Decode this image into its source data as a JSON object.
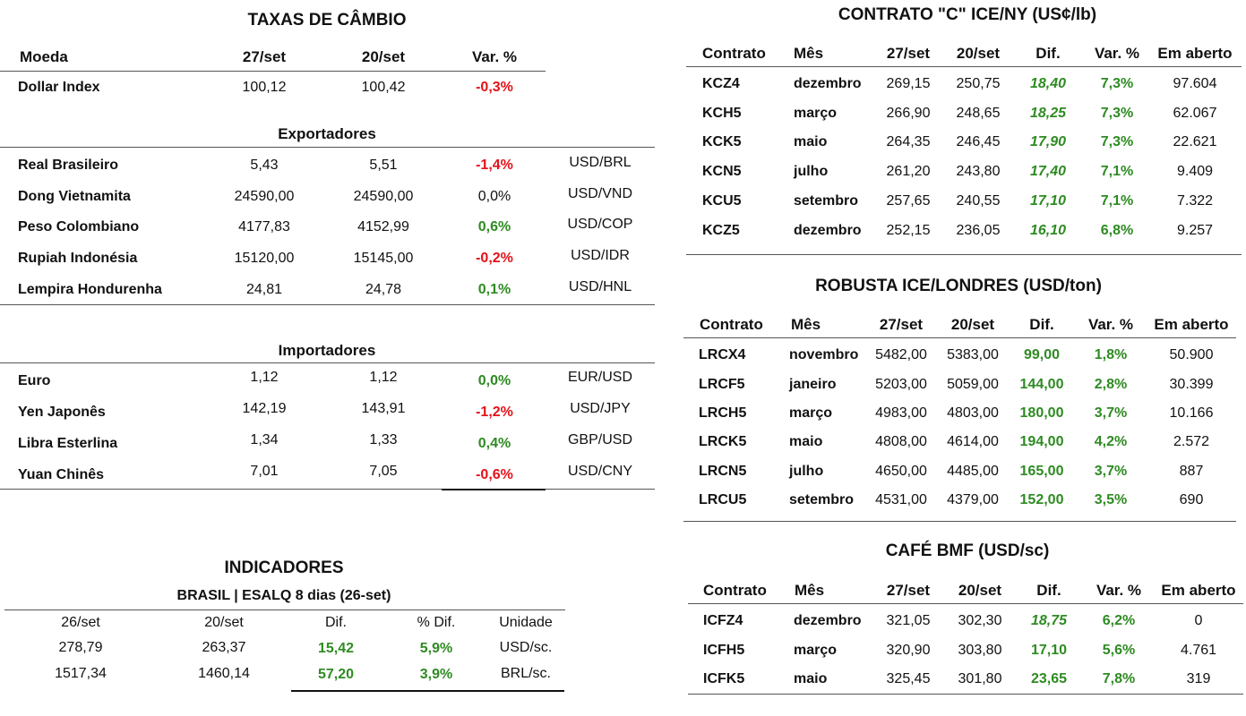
{
  "colors": {
    "positive": "#2e8b22",
    "negative": "#e3121a"
  },
  "fx": {
    "title": "TAXAS DE CÂMBIO",
    "headers": [
      "Moeda",
      "27/set",
      "20/set",
      "Var. %"
    ],
    "dollar_index": {
      "name": "Dollar Index",
      "v1": "100,12",
      "v2": "100,42",
      "var": "-0,3%"
    },
    "exporters_title": "Exportadores",
    "exporters": [
      {
        "name": "Real Brasileiro",
        "v1": "5,43",
        "v2": "5,51",
        "var": "-1,4%",
        "pair": "USD/BRL",
        "sign": "neg"
      },
      {
        "name": "Dong Vietnamita",
        "v1": "24590,00",
        "v2": "24590,00",
        "var": "0,0%",
        "pair": "USD/VND",
        "sign": "none"
      },
      {
        "name": "Peso Colombiano",
        "v1": "4177,83",
        "v2": "4152,99",
        "var": "0,6%",
        "pair": "USD/COP",
        "sign": "pos"
      },
      {
        "name": "Rupiah Indonésia",
        "v1": "15120,00",
        "v2": "15145,00",
        "var": "-0,2%",
        "pair": "USD/IDR",
        "sign": "neg"
      },
      {
        "name": "Lempira Hondurenha",
        "v1": "24,81",
        "v2": "24,78",
        "var": "0,1%",
        "pair": "USD/HNL",
        "sign": "pos"
      }
    ],
    "importers_title": "Importadores",
    "importers": [
      {
        "name": "Euro",
        "v1": "1,12",
        "v2": "1,12",
        "var": "0,0%",
        "pair": "EUR/USD",
        "sign": "pos"
      },
      {
        "name": "Yen Japonês",
        "v1": "142,19",
        "v2": "143,91",
        "var": "-1,2%",
        "pair": "USD/JPY",
        "sign": "neg"
      },
      {
        "name": "Libra Esterlina",
        "v1": "1,34",
        "v2": "1,33",
        "var": "0,4%",
        "pair": "GBP/USD",
        "sign": "pos"
      },
      {
        "name": "Yuan Chinês",
        "v1": "7,01",
        "v2": "7,05",
        "var": "-0,6%",
        "pair": "USD/CNY",
        "sign": "neg"
      }
    ]
  },
  "indicators": {
    "title": "INDICADORES",
    "subtitle": "BRASIL | ESALQ 8 dias (26-set)",
    "headers": [
      "26/set",
      "20/set",
      "Dif.",
      "% Dif.",
      "Unidade"
    ],
    "rows": [
      {
        "v1": "278,79",
        "v2": "263,37",
        "dif": "15,42",
        "pct": "5,9%",
        "unit": "USD/sc."
      },
      {
        "v1": "1517,34",
        "v2": "1460,14",
        "dif": "57,20",
        "pct": "3,9%",
        "unit": "BRL/sc."
      }
    ]
  },
  "arabica": {
    "title": "CONTRATO \"C\" ICE/NY (US¢/lb)",
    "headers": [
      "Contrato",
      "Mês",
      "27/set",
      "20/set",
      "Dif.",
      "Var. %",
      "Em aberto"
    ],
    "rows": [
      {
        "c": "KCZ4",
        "m": "dezembro",
        "v1": "269,15",
        "v2": "250,75",
        "dif": "18,40",
        "var": "7,3%",
        "oi": "97.604"
      },
      {
        "c": "KCH5",
        "m": "março",
        "v1": "266,90",
        "v2": "248,65",
        "dif": "18,25",
        "var": "7,3%",
        "oi": "62.067"
      },
      {
        "c": "KCK5",
        "m": "maio",
        "v1": "264,35",
        "v2": "246,45",
        "dif": "17,90",
        "var": "7,3%",
        "oi": "22.621"
      },
      {
        "c": "KCN5",
        "m": "julho",
        "v1": "261,20",
        "v2": "243,80",
        "dif": "17,40",
        "var": "7,1%",
        "oi": "9.409"
      },
      {
        "c": "KCU5",
        "m": "setembro",
        "v1": "257,65",
        "v2": "240,55",
        "dif": "17,10",
        "var": "7,1%",
        "oi": "7.322"
      },
      {
        "c": "KCZ5",
        "m": "dezembro",
        "v1": "252,15",
        "v2": "236,05",
        "dif": "16,10",
        "var": "6,8%",
        "oi": "9.257"
      }
    ]
  },
  "robusta": {
    "title": "ROBUSTA ICE/LONDRES (USD/ton)",
    "headers": [
      "Contrato",
      "Mês",
      "27/set",
      "20/set",
      "Dif.",
      "Var. %",
      "Em aberto"
    ],
    "rows": [
      {
        "c": "LRCX4",
        "m": "novembro",
        "v1": "5482,00",
        "v2": "5383,00",
        "dif": "99,00",
        "var": "1,8%",
        "oi": "50.900"
      },
      {
        "c": "LRCF5",
        "m": "janeiro",
        "v1": "5203,00",
        "v2": "5059,00",
        "dif": "144,00",
        "var": "2,8%",
        "oi": "30.399"
      },
      {
        "c": "LRCH5",
        "m": "março",
        "v1": "4983,00",
        "v2": "4803,00",
        "dif": "180,00",
        "var": "3,7%",
        "oi": "10.166"
      },
      {
        "c": "LRCK5",
        "m": "maio",
        "v1": "4808,00",
        "v2": "4614,00",
        "dif": "194,00",
        "var": "4,2%",
        "oi": "2.572"
      },
      {
        "c": "LRCN5",
        "m": "julho",
        "v1": "4650,00",
        "v2": "4485,00",
        "dif": "165,00",
        "var": "3,7%",
        "oi": "887"
      },
      {
        "c": "LRCU5",
        "m": "setembro",
        "v1": "4531,00",
        "v2": "4379,00",
        "dif": "152,00",
        "var": "3,5%",
        "oi": "690"
      }
    ]
  },
  "bmf": {
    "title": "CAFÉ BMF (USD/sc)",
    "headers": [
      "Contrato",
      "Mês",
      "27/set",
      "20/set",
      "Dif.",
      "Var. %",
      "Em aberto"
    ],
    "rows": [
      {
        "c": "ICFZ4",
        "m": "dezembro",
        "v1": "321,05",
        "v2": "302,30",
        "dif": "18,75",
        "var": "6,2%",
        "oi": "0"
      },
      {
        "c": "ICFH5",
        "m": "março",
        "v1": "320,90",
        "v2": "303,80",
        "dif": "17,10",
        "var": "5,6%",
        "oi": "4.761"
      },
      {
        "c": "ICFK5",
        "m": "maio",
        "v1": "325,45",
        "v2": "301,80",
        "dif": "23,65",
        "var": "7,8%",
        "oi": "319"
      }
    ]
  }
}
